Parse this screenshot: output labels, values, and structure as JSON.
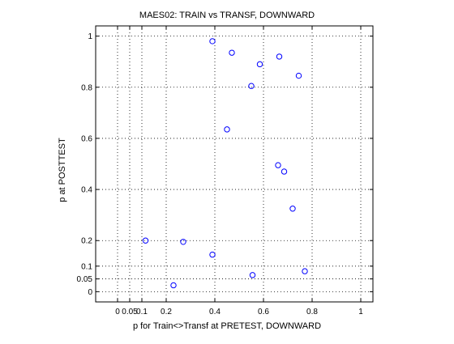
{
  "chart_data": {
    "type": "scatter",
    "title": "MAES02: TRAIN vs TRANSF, DOWNWARD",
    "xlabel": "p for Train<>Transf at PRETEST, DOWNWARD",
    "ylabel": "p at POSTTEST",
    "xlim": [
      -0.09,
      1.05
    ],
    "ylim": [
      -0.04,
      1.04
    ],
    "x_ticks": [
      {
        "value": 0,
        "label": "0"
      },
      {
        "value": 0.05,
        "label": "0.05"
      },
      {
        "value": 0.1,
        "label": "0.1"
      },
      {
        "value": 0.2,
        "label": "0.2"
      },
      {
        "value": 0.4,
        "label": "0.4"
      },
      {
        "value": 0.6,
        "label": "0.6"
      },
      {
        "value": 0.8,
        "label": "0.8"
      },
      {
        "value": 1,
        "label": "1"
      }
    ],
    "y_ticks": [
      {
        "value": 0,
        "label": "0"
      },
      {
        "value": 0.05,
        "label": "0.05"
      },
      {
        "value": 0.1,
        "label": "0.1"
      },
      {
        "value": 0.2,
        "label": "0.2"
      },
      {
        "value": 0.4,
        "label": "0.4"
      },
      {
        "value": 0.6,
        "label": "0.6"
      },
      {
        "value": 0.8,
        "label": "0.8"
      },
      {
        "value": 1,
        "label": "1"
      }
    ],
    "grid": true,
    "marker": "open-circle",
    "marker_color": "#0000ff",
    "series": [
      {
        "points": [
          {
            "x": 0.39,
            "y": 0.98
          },
          {
            "x": 0.47,
            "y": 0.935
          },
          {
            "x": 0.665,
            "y": 0.92
          },
          {
            "x": 0.585,
            "y": 0.89
          },
          {
            "x": 0.745,
            "y": 0.845
          },
          {
            "x": 0.55,
            "y": 0.805
          },
          {
            "x": 0.45,
            "y": 0.635
          },
          {
            "x": 0.66,
            "y": 0.495
          },
          {
            "x": 0.685,
            "y": 0.47
          },
          {
            "x": 0.72,
            "y": 0.325
          },
          {
            "x": 0.115,
            "y": 0.2
          },
          {
            "x": 0.27,
            "y": 0.195
          },
          {
            "x": 0.39,
            "y": 0.145
          },
          {
            "x": 0.77,
            "y": 0.08
          },
          {
            "x": 0.555,
            "y": 0.065
          },
          {
            "x": 0.23,
            "y": 0.025
          }
        ]
      }
    ]
  }
}
